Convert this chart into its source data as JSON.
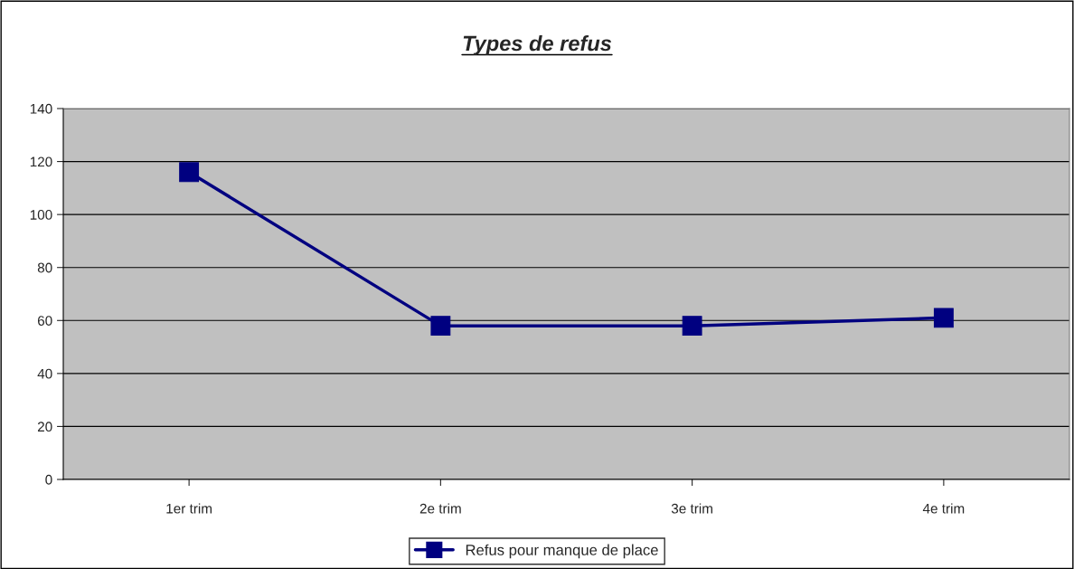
{
  "chart_data": {
    "type": "line",
    "title": "Types de refus",
    "categories": [
      "1er trim",
      "2e trim",
      "3e trim",
      "4e trim"
    ],
    "series": [
      {
        "name": "Refus pour manque de place",
        "color": "#000080",
        "values": [
          116,
          58,
          58,
          61
        ]
      }
    ],
    "ylim": [
      0,
      140
    ],
    "yticks": [
      0,
      20,
      40,
      60,
      80,
      100,
      120,
      140
    ],
    "grid": "y",
    "legend": "bottom",
    "marker": "square",
    "line_style": "solid"
  }
}
